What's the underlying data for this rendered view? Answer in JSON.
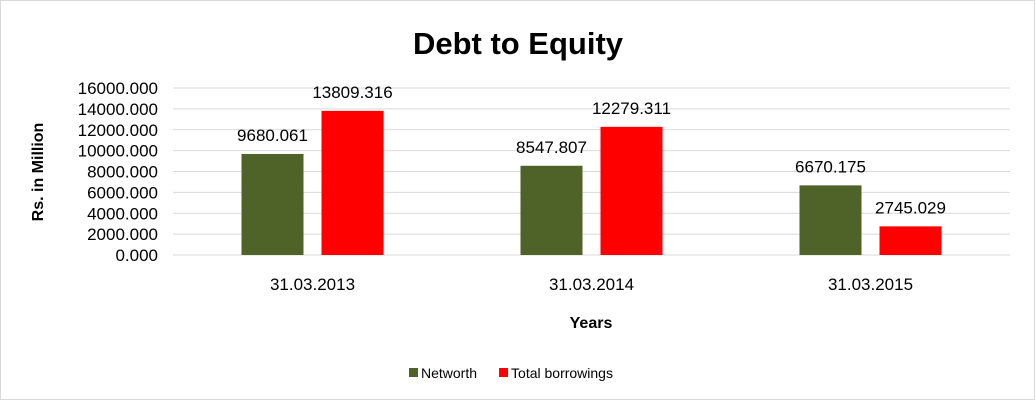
{
  "chart_data": {
    "type": "bar",
    "title": "Debt to Equity",
    "xlabel": "Years",
    "ylabel": "Rs. in Million",
    "categories": [
      "31.03.2013",
      "31.03.2014",
      "31.03.2015"
    ],
    "series": [
      {
        "name": "Networth",
        "color": "#4F6228",
        "values": [
          9680.061,
          8547.807,
          6670.175
        ],
        "labels": [
          "9680.061",
          "8547.807",
          "6670.175"
        ]
      },
      {
        "name": "Total borrowings",
        "color": "#FF0000",
        "values": [
          13809.316,
          12279.311,
          2745.029
        ],
        "labels": [
          "13809.316",
          "12279.311",
          "2745.029"
        ]
      }
    ],
    "ylim": [
      0,
      16000
    ],
    "yticks": [
      "0.000",
      "2000.000",
      "4000.000",
      "6000.000",
      "8000.000",
      "10000.000",
      "12000.000",
      "14000.000",
      "16000.000"
    ],
    "grid": true,
    "legend_position": "bottom"
  }
}
